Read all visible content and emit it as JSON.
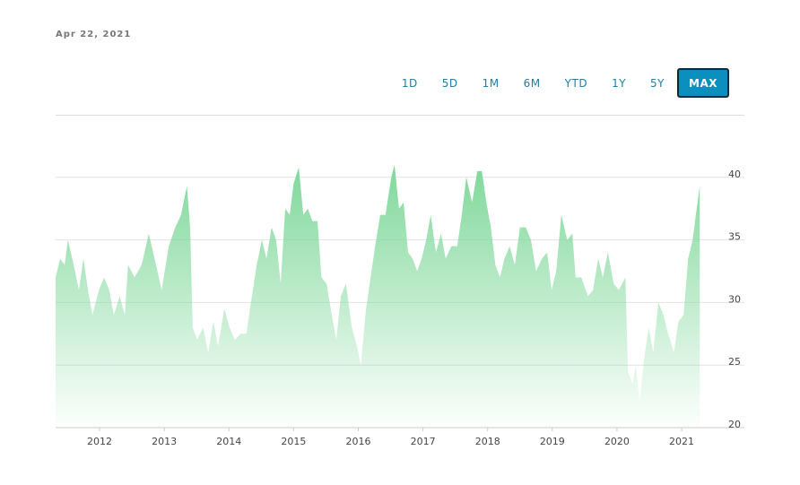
{
  "chart_data": {
    "type": "area",
    "date_label": "Apr 22, 2021",
    "range_buttons": [
      "1D",
      "5D",
      "1M",
      "6M",
      "YTD",
      "1Y",
      "5Y",
      "MAX"
    ],
    "selected_index": 7,
    "color": "#7fd89a",
    "x": [
      2011.32,
      2011.39,
      2011.46,
      2011.51,
      2011.6,
      2011.68,
      2011.75,
      2011.82,
      2011.89,
      2011.99,
      2012.07,
      2012.15,
      2012.22,
      2012.31,
      2012.39,
      2012.44,
      2012.54,
      2012.65,
      2012.76,
      2012.85,
      2012.96,
      2013.07,
      2013.17,
      2013.26,
      2013.35,
      2013.4,
      2013.44,
      2013.51,
      2013.6,
      2013.68,
      2013.76,
      2013.83,
      2013.93,
      2014.01,
      2014.09,
      2014.18,
      2014.27,
      2014.34,
      2014.43,
      2014.51,
      2014.58,
      2014.66,
      2014.73,
      2014.8,
      2014.87,
      2014.94,
      2015.0,
      2015.08,
      2015.15,
      2015.22,
      2015.29,
      2015.37,
      2015.43,
      2015.51,
      2015.59,
      2015.66,
      2015.73,
      2015.81,
      2015.9,
      2015.98,
      2016.04,
      2016.12,
      2016.19,
      2016.26,
      2016.34,
      2016.42,
      2016.51,
      2016.56,
      2016.63,
      2016.7,
      2016.77,
      2016.84,
      2016.91,
      2016.98,
      2017.05,
      2017.12,
      2017.2,
      2017.28,
      2017.35,
      2017.44,
      2017.53,
      2017.6,
      2017.67,
      2017.76,
      2017.84,
      2017.91,
      2017.98,
      2018.05,
      2018.12,
      2018.19,
      2018.26,
      2018.34,
      2018.42,
      2018.5,
      2018.59,
      2018.67,
      2018.75,
      2018.84,
      2018.92,
      2018.99,
      2019.06,
      2019.14,
      2019.23,
      2019.31,
      2019.36,
      2019.45,
      2019.55,
      2019.63,
      2019.71,
      2019.78,
      2019.86,
      2019.95,
      2020.03,
      2020.13,
      2020.17,
      2020.24,
      2020.29,
      2020.35,
      2020.42,
      2020.49,
      2020.56,
      2020.64,
      2020.72,
      2020.79,
      2020.88,
      2020.95,
      2021.03,
      2021.1,
      2021.17,
      2021.22,
      2021.28
    ],
    "values": [
      32,
      33.5,
      33,
      35,
      33,
      31,
      33.5,
      31,
      29,
      31,
      32,
      31,
      29,
      30.5,
      29,
      33,
      32,
      33,
      35.5,
      33.5,
      31,
      34.5,
      36,
      37,
      39.3,
      36,
      28,
      27,
      28,
      26,
      28.5,
      26.5,
      29.5,
      28,
      27,
      27.5,
      27.5,
      30,
      33,
      35,
      33.5,
      36,
      35,
      31.5,
      37.5,
      37,
      39.5,
      40.8,
      37,
      37.5,
      36.5,
      36.5,
      32,
      31.5,
      29,
      27,
      30.5,
      31.5,
      28,
      26.5,
      25,
      29.5,
      32,
      34.5,
      37,
      37,
      40,
      41,
      37.5,
      38,
      34,
      33.5,
      32.5,
      33.5,
      35,
      37,
      34,
      35.5,
      33.5,
      34.5,
      34.5,
      37,
      40,
      38,
      40.5,
      40.5,
      38,
      36,
      33,
      32,
      33.5,
      34.5,
      33,
      36,
      36,
      35,
      32.5,
      33.5,
      34,
      31,
      32.5,
      37,
      35,
      35.5,
      32,
      32,
      30.5,
      31,
      33.5,
      32,
      34,
      31.5,
      31,
      32,
      24.5,
      23.5,
      25,
      22,
      25.5,
      28,
      26,
      30,
      29,
      27.5,
      26,
      28.5,
      29,
      33.5,
      35,
      37,
      39.3
    ],
    "xlim": [
      2011.32,
      2021.97
    ],
    "xticks": [
      2012,
      2013,
      2014,
      2015,
      2016,
      2017,
      2018,
      2019,
      2020,
      2021
    ],
    "ylim": [
      20,
      45
    ],
    "yticks": [
      20,
      25,
      30,
      35,
      40
    ],
    "grid": true
  }
}
